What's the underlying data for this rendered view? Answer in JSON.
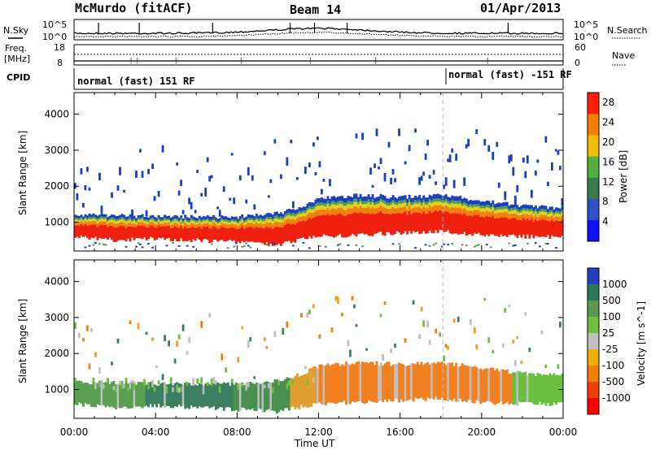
{
  "header": {
    "station": "McMurdo (fitACF)",
    "beam": "Beam 14",
    "date": "01/Apr/2013"
  },
  "top_panel": {
    "left_label_sky": "N.Sky",
    "left_label_freq": "Freq.",
    "left_label_mhz": "[MHz]",
    "left_label_cpid": "CPID",
    "right_label_search": "N.Search",
    "right_label_nave": "Nave",
    "noise_ticks": [
      "10^5",
      "10^0"
    ],
    "freq_ticks": [
      "18",
      "8"
    ],
    "nave_ticks": [
      "60",
      "0"
    ],
    "cpid_left": "normal (fast) 151 RF",
    "cpid_right": "normal (fast) -151 RF",
    "cpid_change_hour": 18.1
  },
  "chart_data": [
    {
      "type": "heatmap",
      "name": "power",
      "ylabel": "Slant Range [km]",
      "xlabel": "",
      "y_ticks": [
        1000,
        2000,
        3000,
        4000
      ],
      "ylim": [
        200,
        4600
      ],
      "xlim": [
        0,
        24
      ],
      "colorbar_label": "Power [dB]",
      "colorbar_ticks": [
        "4",
        "8",
        "12",
        "16",
        "20",
        "24",
        "28"
      ],
      "colorbar_colors": [
        "#1010ff",
        "#3050c8",
        "#3a7a50",
        "#50b040",
        "#f0c000",
        "#f08000",
        "#ff2000"
      ],
      "colorbar_range": [
        0,
        30
      ],
      "band_lower_km": [
        [
          0,
          600
        ],
        [
          2,
          500
        ],
        [
          4,
          550
        ],
        [
          6,
          500
        ],
        [
          8,
          450
        ],
        [
          10,
          380
        ],
        [
          10.5,
          450
        ],
        [
          12,
          600
        ],
        [
          14,
          650
        ],
        [
          16,
          700
        ],
        [
          18,
          750
        ],
        [
          20,
          650
        ],
        [
          22,
          600
        ],
        [
          24,
          600
        ]
      ],
      "band_upper_km": [
        [
          0,
          1200
        ],
        [
          2,
          1200
        ],
        [
          4,
          1150
        ],
        [
          6,
          1150
        ],
        [
          8,
          1150
        ],
        [
          10,
          1250
        ],
        [
          11,
          1400
        ],
        [
          12,
          1650
        ],
        [
          14,
          1750
        ],
        [
          16,
          1700
        ],
        [
          18,
          1750
        ],
        [
          20,
          1600
        ],
        [
          22,
          1450
        ],
        [
          24,
          1400
        ]
      ]
    },
    {
      "type": "heatmap",
      "name": "velocity",
      "ylabel": "Slant Range [km]",
      "xlabel": "Time UT",
      "x_ticks": [
        "00:00",
        "04:00",
        "08:00",
        "12:00",
        "16:00",
        "20:00",
        "00:00"
      ],
      "y_ticks": [
        1000,
        2000,
        3000,
        4000
      ],
      "ylim": [
        200,
        4600
      ],
      "xlim": [
        0,
        24
      ],
      "colorbar_label": "Velocity [m s^-1]",
      "colorbar_ticks": [
        "1000",
        "500",
        "100",
        "25",
        "-25",
        "-100",
        "-500",
        "-1000"
      ],
      "colorbar_colors": [
        "#2040c0",
        "#2a7a5a",
        "#5a9a50",
        "#70c040",
        "#c0c0c0",
        "#f0b000",
        "#f08000",
        "#f04000",
        "#ff0000"
      ],
      "segments": [
        {
          "x0": 0,
          "x1": 3.5,
          "color": "#5aa050"
        },
        {
          "x0": 3.5,
          "x1": 7.8,
          "color": "#3a8060"
        },
        {
          "x0": 7.8,
          "x1": 10.6,
          "color": "#4a9050"
        },
        {
          "x0": 10.6,
          "x1": 12.0,
          "color": "#e0a030"
        },
        {
          "x0": 12.0,
          "x1": 21.5,
          "color": "#f08020"
        },
        {
          "x0": 21.5,
          "x1": 24,
          "color": "#6abe40"
        }
      ]
    }
  ]
}
